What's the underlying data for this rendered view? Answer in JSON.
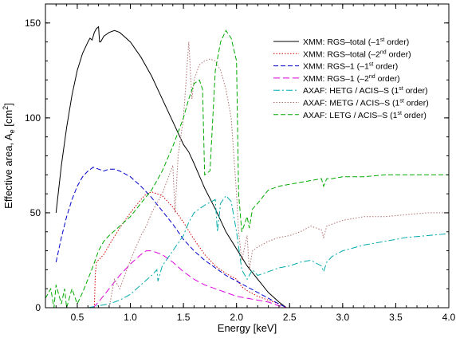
{
  "chart_data": {
    "type": "line",
    "title": "",
    "xlabel": "Energy [keV]",
    "ylabel": "Effective area, A",
    "ylabel_sub": "e",
    "ylabel_unit": " [cm",
    "ylabel_sup": "2",
    "ylabel_close": "]",
    "xlim": [
      0.2,
      4.0
    ],
    "ylim": [
      0,
      160
    ],
    "xticks": [
      0.5,
      1.0,
      1.5,
      2.0,
      2.5,
      3.0,
      3.5,
      4.0
    ],
    "xtick_labels": [
      "0.5",
      "1.0",
      "1.5",
      "2.0",
      "2.5",
      "3.0",
      "3.5",
      "4.0"
    ],
    "yticks": [
      0,
      50,
      100,
      150
    ],
    "ytick_labels": [
      "0",
      "50",
      "100",
      "150"
    ],
    "grid": false,
    "legend_position": "top-right",
    "series": [
      {
        "name": "XMM: RGS–total (–1st order)",
        "legend_prefix": "XMM: RGS–total (–1",
        "legend_sup": "st",
        "legend_suffix": " order)",
        "color": "#000000",
        "dash": "",
        "points": [
          [
            0.3,
            50
          ],
          [
            0.35,
            75
          ],
          [
            0.4,
            95
          ],
          [
            0.45,
            112
          ],
          [
            0.5,
            125
          ],
          [
            0.55,
            134
          ],
          [
            0.6,
            140
          ],
          [
            0.62,
            142
          ],
          [
            0.64,
            141
          ],
          [
            0.66,
            145
          ],
          [
            0.68,
            147
          ],
          [
            0.7,
            148
          ],
          [
            0.71,
            140
          ],
          [
            0.72,
            140
          ],
          [
            0.75,
            143
          ],
          [
            0.8,
            145
          ],
          [
            0.85,
            146
          ],
          [
            0.9,
            145
          ],
          [
            1.0,
            140
          ],
          [
            1.1,
            132
          ],
          [
            1.2,
            122
          ],
          [
            1.3,
            110
          ],
          [
            1.4,
            98
          ],
          [
            1.5,
            86
          ],
          [
            1.55,
            82
          ],
          [
            1.6,
            76
          ],
          [
            1.7,
            63
          ],
          [
            1.8,
            52
          ],
          [
            1.9,
            40
          ],
          [
            2.0,
            31
          ],
          [
            2.1,
            22
          ],
          [
            2.2,
            15
          ],
          [
            2.3,
            8
          ],
          [
            2.4,
            3
          ],
          [
            2.47,
            0
          ]
        ]
      },
      {
        "name": "XMM: RGS–total (–2nd order)",
        "legend_prefix": "XMM: RGS–total (–2",
        "legend_sup": "nd",
        "legend_suffix": " order)",
        "color": "#d40000",
        "dash": "1.5,2",
        "points": [
          [
            0.66,
            0
          ],
          [
            0.67,
            18
          ],
          [
            0.68,
            24
          ],
          [
            0.75,
            28
          ],
          [
            0.8,
            33
          ],
          [
            0.9,
            42
          ],
          [
            1.0,
            50
          ],
          [
            1.1,
            57
          ],
          [
            1.15,
            60
          ],
          [
            1.2,
            61
          ],
          [
            1.3,
            59
          ],
          [
            1.4,
            53
          ],
          [
            1.5,
            45
          ],
          [
            1.6,
            36
          ],
          [
            1.7,
            28
          ],
          [
            1.8,
            22
          ],
          [
            1.9,
            18
          ],
          [
            2.0,
            15
          ],
          [
            2.05,
            11
          ],
          [
            2.1,
            9
          ],
          [
            2.2,
            6
          ],
          [
            2.3,
            4
          ],
          [
            2.4,
            2
          ],
          [
            2.47,
            0
          ]
        ]
      },
      {
        "name": "XMM: RGS–1 (–1st order)",
        "legend_prefix": "XMM: RGS–1 (–1",
        "legend_sup": "st",
        "legend_suffix": " order)",
        "color": "#0000cc",
        "dash": "6,3",
        "points": [
          [
            0.3,
            24
          ],
          [
            0.35,
            37
          ],
          [
            0.4,
            48
          ],
          [
            0.45,
            57
          ],
          [
            0.5,
            64
          ],
          [
            0.55,
            69
          ],
          [
            0.6,
            72
          ],
          [
            0.65,
            74
          ],
          [
            0.7,
            73
          ],
          [
            0.75,
            72
          ],
          [
            0.8,
            73
          ],
          [
            0.85,
            73
          ],
          [
            0.9,
            72
          ],
          [
            1.0,
            69
          ],
          [
            1.1,
            64
          ],
          [
            1.2,
            58
          ],
          [
            1.3,
            51
          ],
          [
            1.4,
            44
          ],
          [
            1.5,
            36
          ],
          [
            1.6,
            30
          ],
          [
            1.7,
            25
          ],
          [
            1.8,
            21
          ],
          [
            1.9,
            17
          ],
          [
            2.0,
            14
          ],
          [
            2.1,
            11
          ],
          [
            2.2,
            8
          ],
          [
            2.3,
            5
          ],
          [
            2.4,
            2
          ],
          [
            2.47,
            0
          ]
        ]
      },
      {
        "name": "XMM: RGS–1 (–2nd order)",
        "legend_prefix": "XMM: RGS–1 (–2",
        "legend_sup": "nd",
        "legend_suffix": " order)",
        "color": "#dd00dd",
        "dash": "8,4",
        "points": [
          [
            0.65,
            0
          ],
          [
            0.7,
            3
          ],
          [
            0.8,
            10
          ],
          [
            0.9,
            17
          ],
          [
            1.0,
            23
          ],
          [
            1.1,
            28
          ],
          [
            1.15,
            30
          ],
          [
            1.2,
            30
          ],
          [
            1.3,
            28
          ],
          [
            1.4,
            24
          ],
          [
            1.5,
            19
          ],
          [
            1.6,
            15
          ],
          [
            1.7,
            12
          ],
          [
            1.8,
            10
          ],
          [
            1.9,
            8
          ],
          [
            2.0,
            6
          ],
          [
            2.1,
            5
          ],
          [
            2.2,
            4
          ],
          [
            2.3,
            3
          ],
          [
            2.4,
            1
          ],
          [
            2.47,
            0
          ]
        ]
      },
      {
        "name": "AXAF: HETG / ACIS–S (1st order)",
        "legend_prefix": "AXAF: HETG / ACIS–S (1",
        "legend_sup": "st",
        "legend_suffix": " order)",
        "color": "#00aaaa",
        "dash": "8,3,2,3",
        "points": [
          [
            0.6,
            0
          ],
          [
            0.7,
            1
          ],
          [
            0.8,
            2
          ],
          [
            0.9,
            4
          ],
          [
            1.0,
            7
          ],
          [
            1.1,
            12
          ],
          [
            1.2,
            17
          ],
          [
            1.25,
            20
          ],
          [
            1.26,
            14
          ],
          [
            1.3,
            22
          ],
          [
            1.4,
            30
          ],
          [
            1.5,
            38
          ],
          [
            1.55,
            45
          ],
          [
            1.6,
            50
          ],
          [
            1.7,
            54
          ],
          [
            1.8,
            57
          ],
          [
            1.82,
            40
          ],
          [
            1.85,
            55
          ],
          [
            1.9,
            59
          ],
          [
            1.95,
            56
          ],
          [
            2.0,
            40
          ],
          [
            2.05,
            20
          ],
          [
            2.1,
            15
          ],
          [
            2.15,
            20
          ],
          [
            2.2,
            17
          ],
          [
            2.3,
            19
          ],
          [
            2.4,
            21
          ],
          [
            2.5,
            22
          ],
          [
            2.6,
            24
          ],
          [
            2.7,
            25
          ],
          [
            2.8,
            22
          ],
          [
            2.82,
            19
          ],
          [
            2.85,
            24
          ],
          [
            2.9,
            27
          ],
          [
            3.0,
            30
          ],
          [
            3.2,
            33
          ],
          [
            3.4,
            35
          ],
          [
            3.6,
            37
          ],
          [
            3.8,
            38
          ],
          [
            4.0,
            39
          ]
        ]
      },
      {
        "name": "AXAF: METG / ACIS–S (1st order)",
        "legend_prefix": "AXAF: METG / ACIS–S (1",
        "legend_sup": "st",
        "legend_suffix": " order)",
        "color": "#b07070",
        "dash": "1.5,2",
        "points": [
          [
            0.8,
            0
          ],
          [
            0.85,
            15
          ],
          [
            0.9,
            10
          ],
          [
            1.0,
            25
          ],
          [
            1.1,
            38
          ],
          [
            1.15,
            43
          ],
          [
            1.2,
            50
          ],
          [
            1.3,
            60
          ],
          [
            1.4,
            75
          ],
          [
            1.42,
            50
          ],
          [
            1.45,
            80
          ],
          [
            1.5,
            100
          ],
          [
            1.55,
            140
          ],
          [
            1.58,
            110
          ],
          [
            1.6,
            120
          ],
          [
            1.65,
            128
          ],
          [
            1.7,
            130
          ],
          [
            1.75,
            131
          ],
          [
            1.8,
            130
          ],
          [
            1.85,
            125
          ],
          [
            1.9,
            115
          ],
          [
            1.95,
            100
          ],
          [
            2.0,
            60
          ],
          [
            2.02,
            40
          ],
          [
            2.05,
            25
          ],
          [
            2.1,
            38
          ],
          [
            2.12,
            20
          ],
          [
            2.15,
            30
          ],
          [
            2.2,
            32
          ],
          [
            2.3,
            35
          ],
          [
            2.4,
            37
          ],
          [
            2.5,
            38
          ],
          [
            2.6,
            40
          ],
          [
            2.7,
            43
          ],
          [
            2.8,
            41
          ],
          [
            2.82,
            37
          ],
          [
            2.85,
            43
          ],
          [
            2.9,
            44
          ],
          [
            3.0,
            46
          ],
          [
            3.2,
            48
          ],
          [
            3.4,
            48
          ],
          [
            3.6,
            49
          ],
          [
            3.8,
            50
          ],
          [
            4.0,
            50
          ]
        ]
      },
      {
        "name": "AXAF: LETG / ACIS–S (1st order)",
        "legend_prefix": "AXAF: LETG / ACIS–S (1",
        "legend_sup": "st",
        "legend_suffix": " order)",
        "color": "#00aa00",
        "dash": "6,3",
        "points": [
          [
            0.2,
            5
          ],
          [
            0.25,
            10
          ],
          [
            0.28,
            0
          ],
          [
            0.3,
            12
          ],
          [
            0.35,
            2
          ],
          [
            0.38,
            10
          ],
          [
            0.4,
            0
          ],
          [
            0.45,
            10
          ],
          [
            0.5,
            2
          ],
          [
            0.55,
            8
          ],
          [
            0.6,
            15
          ],
          [
            0.65,
            22
          ],
          [
            0.7,
            30
          ],
          [
            0.75,
            35
          ],
          [
            0.8,
            38
          ],
          [
            0.9,
            43
          ],
          [
            1.0,
            48
          ],
          [
            1.1,
            55
          ],
          [
            1.2,
            62
          ],
          [
            1.3,
            72
          ],
          [
            1.4,
            85
          ],
          [
            1.5,
            100
          ],
          [
            1.55,
            110
          ],
          [
            1.6,
            118
          ],
          [
            1.65,
            120
          ],
          [
            1.68,
            115
          ],
          [
            1.7,
            70
          ],
          [
            1.75,
            72
          ],
          [
            1.8,
            125
          ],
          [
            1.85,
            140
          ],
          [
            1.9,
            146
          ],
          [
            1.95,
            142
          ],
          [
            2.0,
            130
          ],
          [
            2.02,
            60
          ],
          [
            2.05,
            40
          ],
          [
            2.1,
            48
          ],
          [
            2.12,
            42
          ],
          [
            2.15,
            52
          ],
          [
            2.2,
            55
          ],
          [
            2.3,
            62
          ],
          [
            2.4,
            64
          ],
          [
            2.5,
            65
          ],
          [
            2.6,
            66
          ],
          [
            2.7,
            67
          ],
          [
            2.8,
            68
          ],
          [
            2.82,
            64
          ],
          [
            2.85,
            68
          ],
          [
            2.9,
            68
          ],
          [
            3.0,
            69
          ],
          [
            3.2,
            69
          ],
          [
            3.4,
            70
          ],
          [
            3.6,
            70
          ],
          [
            3.8,
            70
          ],
          [
            4.0,
            70
          ]
        ]
      }
    ]
  }
}
